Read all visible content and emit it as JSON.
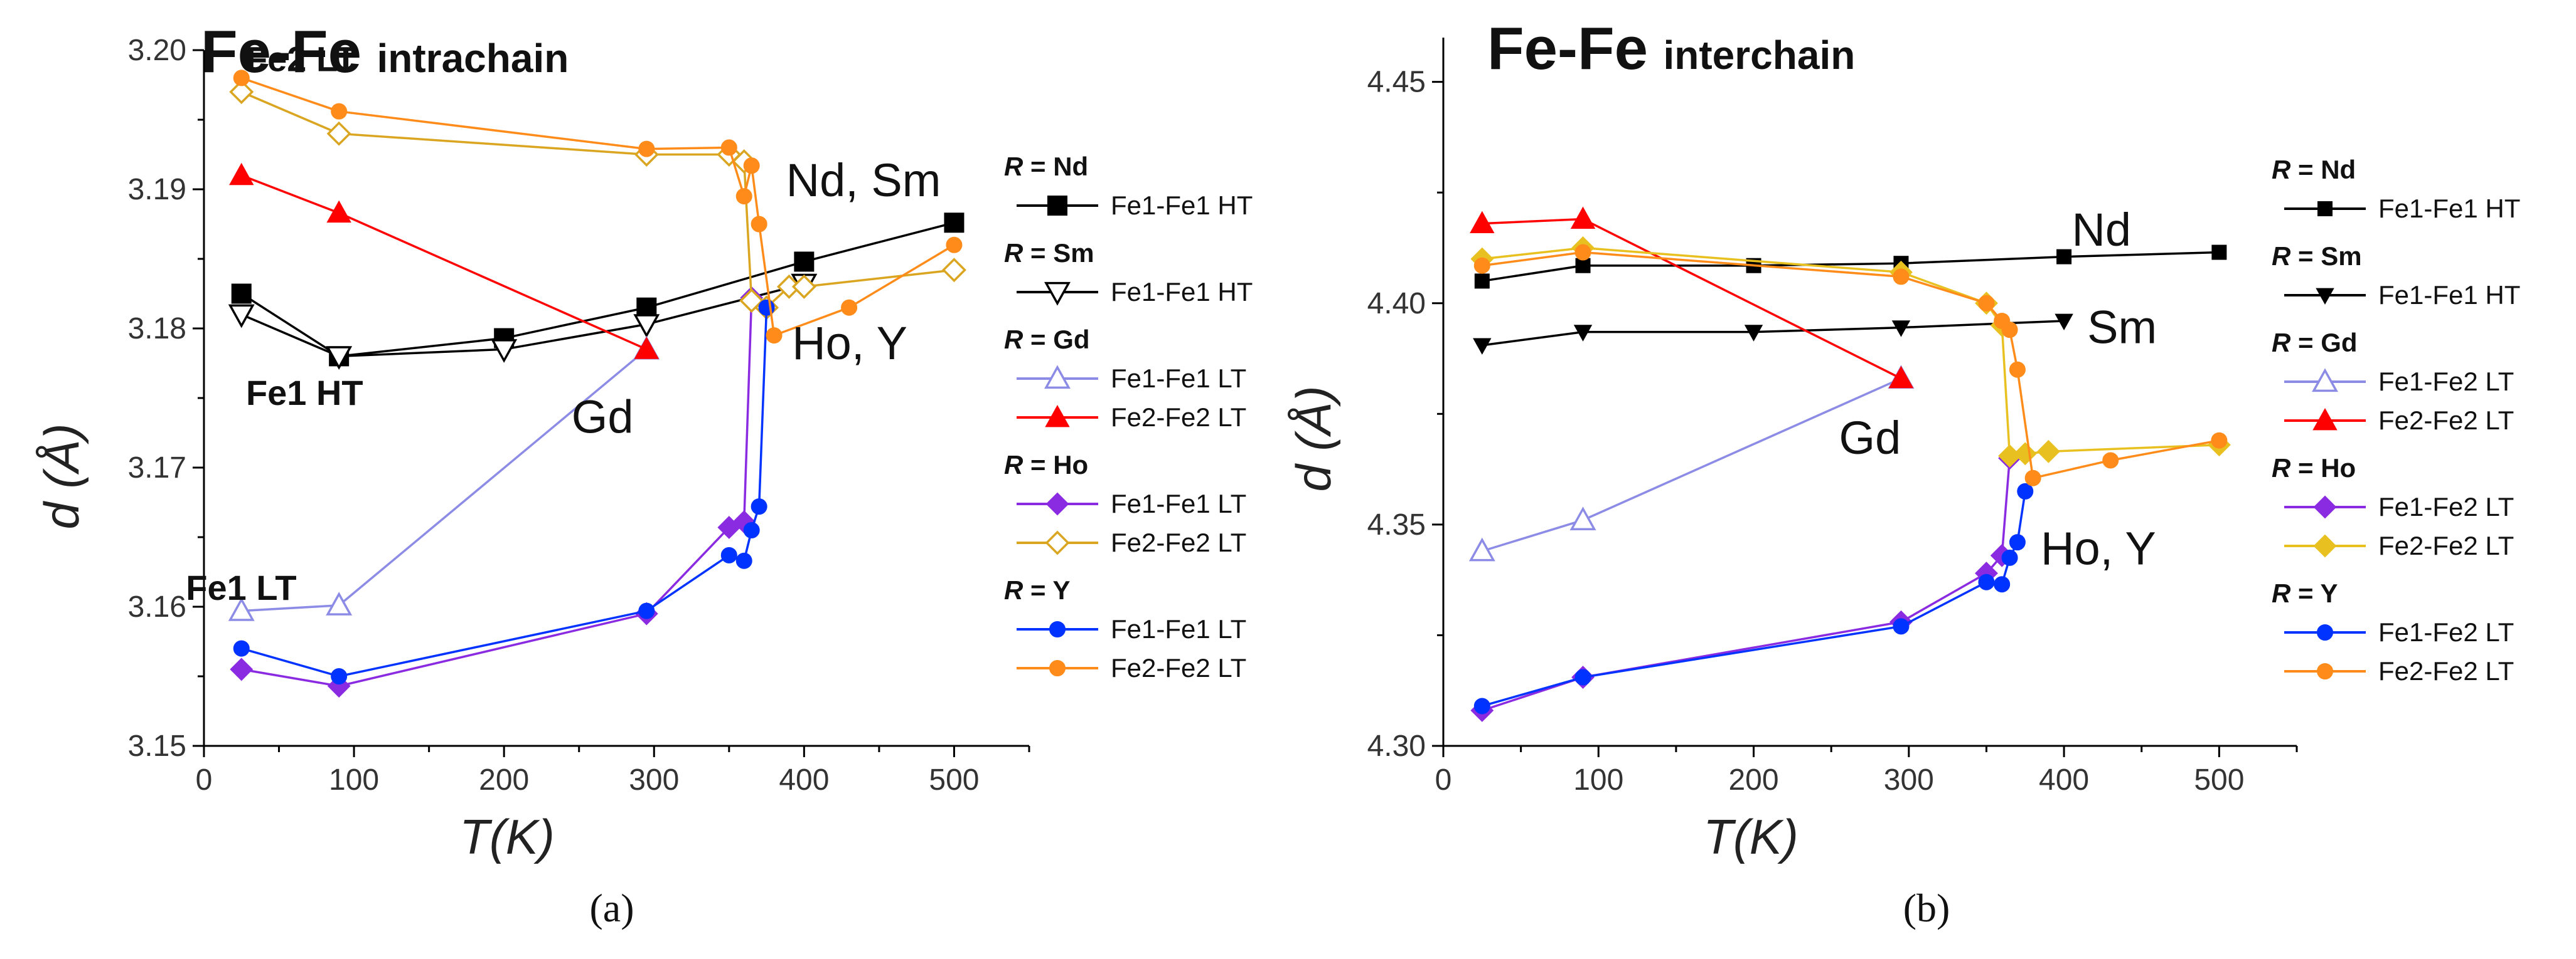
{
  "chart_data": [
    {
      "type": "line",
      "panel_label": "(a)",
      "title": "Fe-Fe",
      "title_suffix": "intrachain",
      "xlabel": "T(K)",
      "ylabel": "d (Å)",
      "xlim": [
        0,
        550
      ],
      "ylim": [
        3.15,
        3.2
      ],
      "xticks": [
        "0",
        "100",
        "200",
        "300",
        "400",
        "500"
      ],
      "xtick_values": [
        0,
        100,
        200,
        300,
        400,
        500
      ],
      "yticks": [
        "3.15",
        "3.16",
        "3.17",
        "3.18",
        "3.19",
        "3.20"
      ],
      "ytick_values": [
        3.15,
        3.16,
        3.17,
        3.18,
        3.19,
        3.2
      ],
      "annotations": [
        {
          "text": "Fe2 LT",
          "x": 28,
          "y": 3.1985,
          "style": "bold"
        },
        {
          "text": "Nd, Sm",
          "x": 388,
          "y": 3.1895,
          "style": "normal"
        },
        {
          "text": "Fe1 HT",
          "x": 28,
          "y": 3.1745,
          "style": "bold"
        },
        {
          "text": "Gd",
          "x": 245,
          "y": 3.1725,
          "style": "normal"
        },
        {
          "text": "Ho, Y",
          "x": 392,
          "y": 3.1778,
          "style": "normal"
        },
        {
          "text": "Fe1 LT",
          "x": -12,
          "y": 3.1605,
          "style": "bold"
        }
      ],
      "legend": [
        {
          "group": "= Nd",
          "items": [
            {
              "label": "Fe1-Fe1 HT",
              "series": 0
            }
          ]
        },
        {
          "group": "= Sm",
          "items": [
            {
              "label": "Fe1-Fe1 HT",
              "series": 1
            }
          ]
        },
        {
          "group": "= Gd",
          "items": [
            {
              "label": "Fe1-Fe1 LT",
              "series": 2
            },
            {
              "label": "Fe2-Fe2 LT",
              "series": 3
            }
          ]
        },
        {
          "group": "= Ho",
          "items": [
            {
              "label": "Fe1-Fe1 LT",
              "series": 4
            },
            {
              "label": "Fe2-Fe2 LT",
              "series": 5
            }
          ]
        },
        {
          "group": "= Y",
          "items": [
            {
              "label": "Fe1-Fe1 LT",
              "series": 6
            },
            {
              "label": "Fe2-Fe2 LT",
              "series": 7
            }
          ]
        }
      ],
      "legend_prefix": "R",
      "series": [
        {
          "name": "Nd Fe1-Fe1 HT",
          "color": "#000000",
          "marker": "square-filled",
          "x": [
            25,
            90,
            200,
            295,
            400,
            500
          ],
          "y": [
            3.1825,
            3.178,
            3.1793,
            3.1815,
            3.1848,
            3.1876
          ]
        },
        {
          "name": "Sm Fe1-Fe1 HT",
          "color": "#000000",
          "marker": "triangle-down-open",
          "x": [
            25,
            90,
            200,
            295,
            400
          ],
          "y": [
            3.181,
            3.178,
            3.1785,
            3.1803,
            3.1832
          ]
        },
        {
          "name": "Gd Fe1-Fe1 LT",
          "color": "#8C8CE6",
          "marker": "triangle-up-open",
          "x": [
            25,
            90,
            295
          ],
          "y": [
            3.1597,
            3.1601,
            3.1785
          ]
        },
        {
          "name": "Gd Fe2-Fe2 LT",
          "color": "#FF0000",
          "marker": "triangle-up-filled",
          "x": [
            25,
            90,
            295
          ],
          "y": [
            3.191,
            3.1883,
            3.1785
          ]
        },
        {
          "name": "Ho Fe1-Fe1 LT",
          "color": "#8A2BE2",
          "marker": "diamond-filled",
          "x": [
            25,
            90,
            295,
            350,
            360,
            365
          ],
          "y": [
            3.1555,
            3.1543,
            3.1595,
            3.1657,
            3.1661,
            3.1822
          ]
        },
        {
          "name": "Ho Fe2-Fe2 LT",
          "color": "#DAA520",
          "marker": "diamond-open",
          "x": [
            25,
            90,
            295,
            350,
            360,
            365,
            375,
            390,
            400,
            500
          ],
          "y": [
            3.197,
            3.194,
            3.1925,
            3.1925,
            3.192,
            3.182,
            3.1815,
            3.183,
            3.183,
            3.1842
          ]
        },
        {
          "name": "Y Fe1-Fe1 LT",
          "color": "#0033FF",
          "marker": "circle-filled",
          "x": [
            25,
            90,
            295,
            350,
            360,
            365,
            370,
            375
          ],
          "y": [
            3.157,
            3.155,
            3.1597,
            3.1637,
            3.1633,
            3.1655,
            3.1672,
            3.1815
          ]
        },
        {
          "name": "Y Fe2-Fe2 LT",
          "color": "#FF8C1A",
          "marker": "circle-filled",
          "x": [
            25,
            90,
            295,
            350,
            360,
            365,
            370,
            380,
            430,
            500
          ],
          "y": [
            3.198,
            3.1956,
            3.1929,
            3.193,
            3.1895,
            3.1917,
            3.1875,
            3.1795,
            3.1815,
            3.186
          ]
        }
      ]
    },
    {
      "type": "line",
      "panel_label": "(b)",
      "title": "Fe-Fe",
      "title_suffix": "interchain",
      "xlabel": "T(K)",
      "ylabel": "d (Å)",
      "xlim": [
        0,
        550
      ],
      "ylim": [
        4.3,
        4.46
      ],
      "xticks": [
        "0",
        "100",
        "200",
        "300",
        "400",
        "500"
      ],
      "xtick_values": [
        0,
        100,
        200,
        300,
        400,
        500
      ],
      "yticks": [
        "4.30",
        "4.35",
        "4.40",
        "4.45"
      ],
      "ytick_values": [
        4.3,
        4.35,
        4.4,
        4.45
      ],
      "annotations": [
        {
          "text": "Nd",
          "x": 405,
          "y": 4.413,
          "style": "normal"
        },
        {
          "text": "Sm",
          "x": 415,
          "y": 4.391,
          "style": "normal"
        },
        {
          "text": "Gd",
          "x": 255,
          "y": 4.366,
          "style": "normal"
        },
        {
          "text": "Ho, Y",
          "x": 385,
          "y": 4.341,
          "style": "normal"
        }
      ],
      "legend": [
        {
          "group": "= Nd",
          "items": [
            {
              "label": "Fe1-Fe1 HT",
              "series": 0
            }
          ]
        },
        {
          "group": "= Sm",
          "items": [
            {
              "label": "Fe1-Fe1 HT",
              "series": 1
            }
          ]
        },
        {
          "group": "= Gd",
          "items": [
            {
              "label": "Fe1-Fe2 LT",
              "series": 2
            },
            {
              "label": "Fe2-Fe2 LT",
              "series": 3
            }
          ]
        },
        {
          "group": "= Ho",
          "items": [
            {
              "label": "Fe1-Fe2 LT",
              "series": 4
            },
            {
              "label": "Fe2-Fe2 LT",
              "series": 5
            }
          ]
        },
        {
          "group": "= Y",
          "items": [
            {
              "label": "Fe1-Fe2 LT",
              "series": 6
            },
            {
              "label": "Fe2-Fe2 LT",
              "series": 7
            }
          ]
        }
      ],
      "legend_prefix": "R",
      "series": [
        {
          "name": "Nd Fe1-Fe1 HT",
          "color": "#000000",
          "marker": "square-filled-small",
          "x": [
            25,
            90,
            200,
            295,
            400,
            500
          ],
          "y": [
            4.405,
            4.4085,
            4.4085,
            4.409,
            4.4105,
            4.4115
          ]
        },
        {
          "name": "Sm Fe1-Fe1 HT",
          "color": "#000000",
          "marker": "triangle-down-filled",
          "x": [
            25,
            90,
            200,
            295,
            400
          ],
          "y": [
            4.3905,
            4.3935,
            4.3935,
            4.3945,
            4.396
          ]
        },
        {
          "name": "Gd Fe1-Fe2 LT",
          "color": "#8C8CE6",
          "marker": "triangle-up-open",
          "x": [
            25,
            90,
            295
          ],
          "y": [
            4.344,
            4.351,
            4.383
          ]
        },
        {
          "name": "Gd Fe2-Fe2 LT",
          "color": "#FF0000",
          "marker": "triangle-up-filled",
          "x": [
            25,
            90,
            295
          ],
          "y": [
            4.418,
            4.419,
            4.383
          ]
        },
        {
          "name": "Ho Fe1-Fe2 LT",
          "color": "#8A2BE2",
          "marker": "diamond-filled",
          "x": [
            25,
            90,
            295,
            350,
            360,
            365
          ],
          "y": [
            4.308,
            4.3155,
            4.328,
            4.339,
            4.343,
            4.365
          ]
        },
        {
          "name": "Ho Fe2-Fe2 LT",
          "color": "#E8C020",
          "marker": "diamond-filled",
          "x": [
            25,
            90,
            295,
            350,
            360,
            365,
            375,
            390,
            500
          ],
          "y": [
            4.41,
            4.4125,
            4.407,
            4.4,
            4.395,
            4.3655,
            4.366,
            4.3665,
            4.368
          ]
        },
        {
          "name": "Y Fe1-Fe2 LT",
          "color": "#0033FF",
          "marker": "circle-filled",
          "x": [
            25,
            90,
            295,
            350,
            360,
            365,
            370,
            375
          ],
          "y": [
            4.309,
            4.3155,
            4.327,
            4.337,
            4.3365,
            4.3425,
            4.346,
            4.3575
          ]
        },
        {
          "name": "Y Fe2-Fe2 LT",
          "color": "#FF8C1A",
          "marker": "circle-filled",
          "x": [
            25,
            90,
            295,
            350,
            360,
            365,
            370,
            380,
            430,
            500
          ],
          "y": [
            4.4085,
            4.4115,
            4.406,
            4.4,
            4.396,
            4.394,
            4.385,
            4.3605,
            4.3645,
            4.369
          ]
        }
      ]
    }
  ]
}
